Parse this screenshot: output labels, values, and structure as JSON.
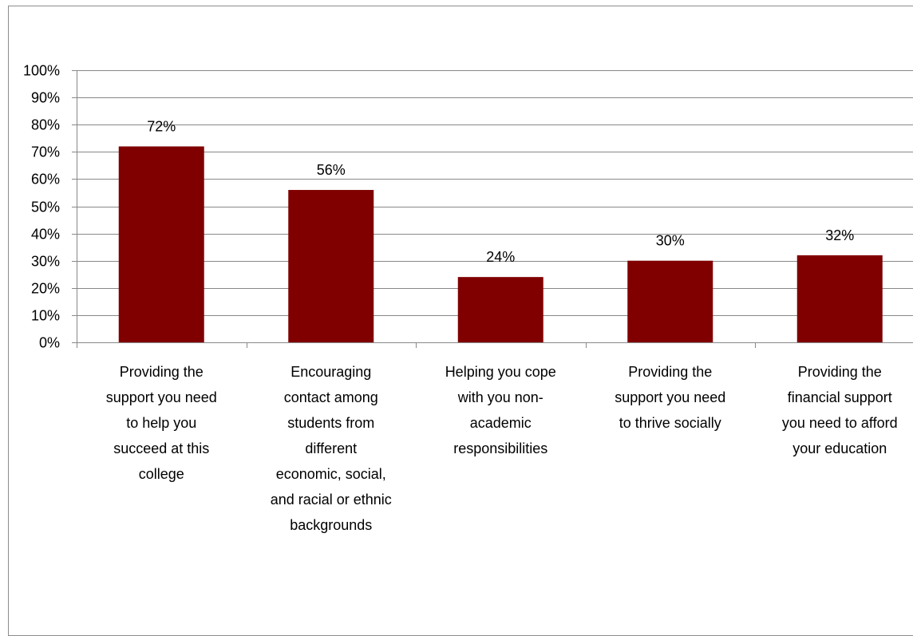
{
  "chart_data": {
    "type": "bar",
    "categories": [
      "Providing the support you need to help you succeed at this college",
      "Encouraging contact among students from different economic, social, and racial or ethnic backgrounds",
      "Helping you cope with you non-academic responsibilities",
      "Providing the support you need to thrive socially",
      "Providing the financial support you need to afford your education"
    ],
    "category_lines": [
      [
        "Providing the",
        "support you need",
        "to help you",
        "succeed at this",
        "college"
      ],
      [
        "Encouraging",
        "contact among",
        "students from",
        "different",
        "economic, social,",
        "and racial or ethnic",
        "backgrounds"
      ],
      [
        "Helping you cope",
        "with you non-",
        "academic",
        "responsibilities"
      ],
      [
        "Providing the",
        "support you need",
        "to thrive socially"
      ],
      [
        "Providing the",
        "financial support",
        "you need to afford",
        "your education"
      ]
    ],
    "values": [
      72,
      56,
      24,
      30,
      32
    ],
    "data_labels": [
      "72%",
      "56%",
      "24%",
      "30%",
      "32%"
    ],
    "ylim": [
      0,
      100
    ],
    "yticks": [
      0,
      10,
      20,
      30,
      40,
      50,
      60,
      70,
      80,
      90,
      100
    ],
    "ytick_labels": [
      "0%",
      "10%",
      "20%",
      "30%",
      "40%",
      "50%",
      "60%",
      "70%",
      "80%",
      "90%",
      "100%"
    ],
    "title": "",
    "xlabel": "",
    "ylabel": "",
    "grid": true,
    "legend": "none",
    "colors": {
      "bar": "#800000",
      "grid": "#888888",
      "axis": "#888888",
      "frame": "#8c8c8c"
    }
  }
}
